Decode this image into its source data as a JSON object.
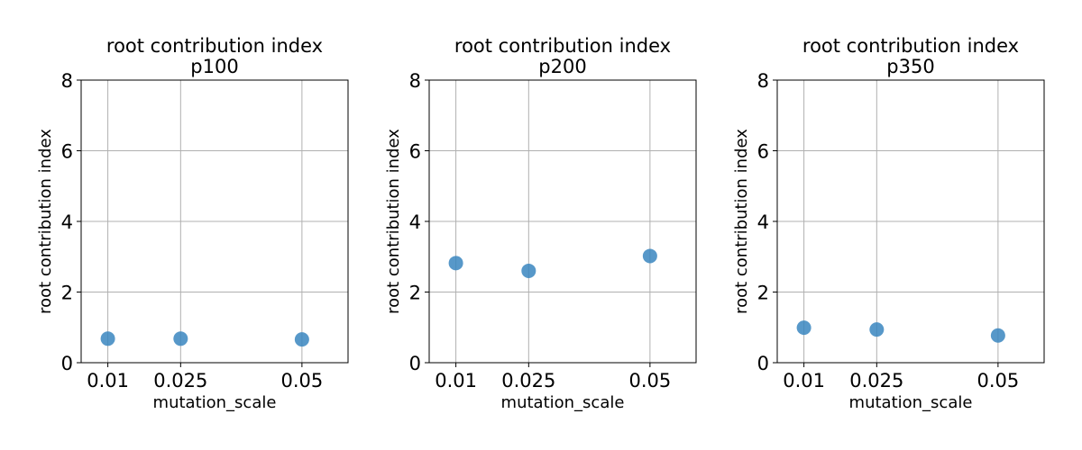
{
  "chart_data": [
    {
      "type": "scatter",
      "title": "root contribution index",
      "subtitle": "p100",
      "xlabel": "mutation_scale",
      "ylabel": "root contribution index",
      "x_categories": [
        "0.01",
        "0.025",
        "0.05"
      ],
      "x": [
        0.01,
        0.025,
        0.05
      ],
      "y": [
        0.68,
        0.68,
        0.66
      ],
      "ylim": [
        0,
        8
      ],
      "yticks": [
        "0",
        "2",
        "4",
        "6",
        "8"
      ],
      "grid": true,
      "point_color": "#3a86c0"
    },
    {
      "type": "scatter",
      "title": "root contribution index",
      "subtitle": "p200",
      "xlabel": "mutation_scale",
      "ylabel": "root contribution index",
      "x_categories": [
        "0.01",
        "0.025",
        "0.05"
      ],
      "x": [
        0.01,
        0.025,
        0.05
      ],
      "y": [
        2.82,
        2.6,
        3.02
      ],
      "ylim": [
        0,
        8
      ],
      "yticks": [
        "0",
        "2",
        "4",
        "6",
        "8"
      ],
      "grid": true,
      "point_color": "#3a86c0"
    },
    {
      "type": "scatter",
      "title": "root contribution index",
      "subtitle": "p350",
      "xlabel": "mutation_scale",
      "ylabel": "root contribution index",
      "x_categories": [
        "0.01",
        "0.025",
        "0.05"
      ],
      "x": [
        0.01,
        0.025,
        0.05
      ],
      "y": [
        0.99,
        0.94,
        0.77
      ],
      "ylim": [
        0,
        8
      ],
      "yticks": [
        "0",
        "2",
        "4",
        "6",
        "8"
      ],
      "grid": true,
      "point_color": "#3a86c0"
    }
  ]
}
